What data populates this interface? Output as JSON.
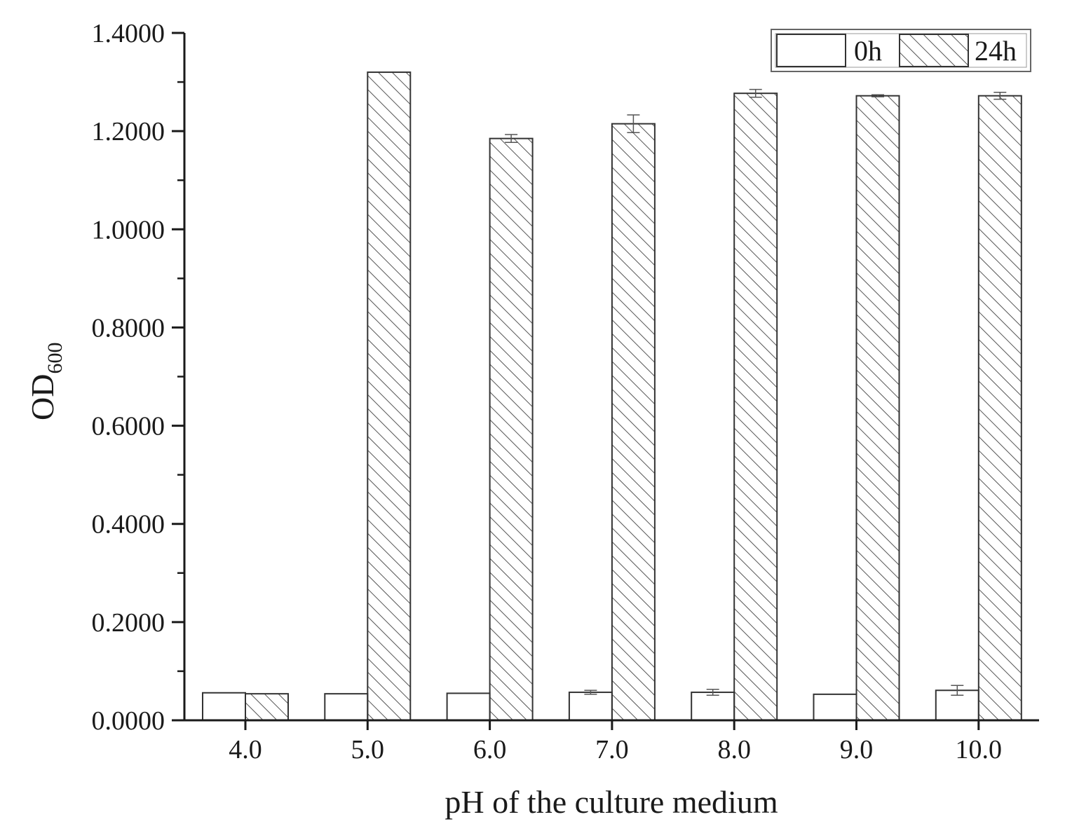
{
  "chart_data": {
    "type": "bar",
    "xlabel": "pH of the culture medium",
    "ylabel_main": "OD",
    "ylabel_sub": "600",
    "categories": [
      "4.0",
      "5.0",
      "6.0",
      "7.0",
      "8.0",
      "9.0",
      "10.0"
    ],
    "ylim": [
      0,
      1.4
    ],
    "yticks": [
      "0.0000",
      "0.2000",
      "0.4000",
      "0.6000",
      "0.8000",
      "1.0000",
      "1.2000",
      "1.4000"
    ],
    "grid": false,
    "legend_position": "top-right",
    "series": [
      {
        "name": "0h",
        "pattern": "plain",
        "values": [
          0.056,
          0.054,
          0.055,
          0.057,
          0.057,
          0.053,
          0.061
        ],
        "errors": [
          0,
          0,
          0,
          0.004,
          0.006,
          0,
          0.01
        ]
      },
      {
        "name": "24h",
        "pattern": "hatched",
        "values": [
          0.054,
          1.32,
          1.185,
          1.215,
          1.277,
          1.272,
          1.272
        ],
        "errors": [
          0,
          0,
          0.008,
          0.018,
          0.008,
          0.002,
          0.007
        ]
      }
    ],
    "colors": {
      "bar_fill": "#ffffff",
      "bar_edge": "#333333",
      "hatch": "#555555",
      "axis": "#1a1a1a"
    }
  }
}
